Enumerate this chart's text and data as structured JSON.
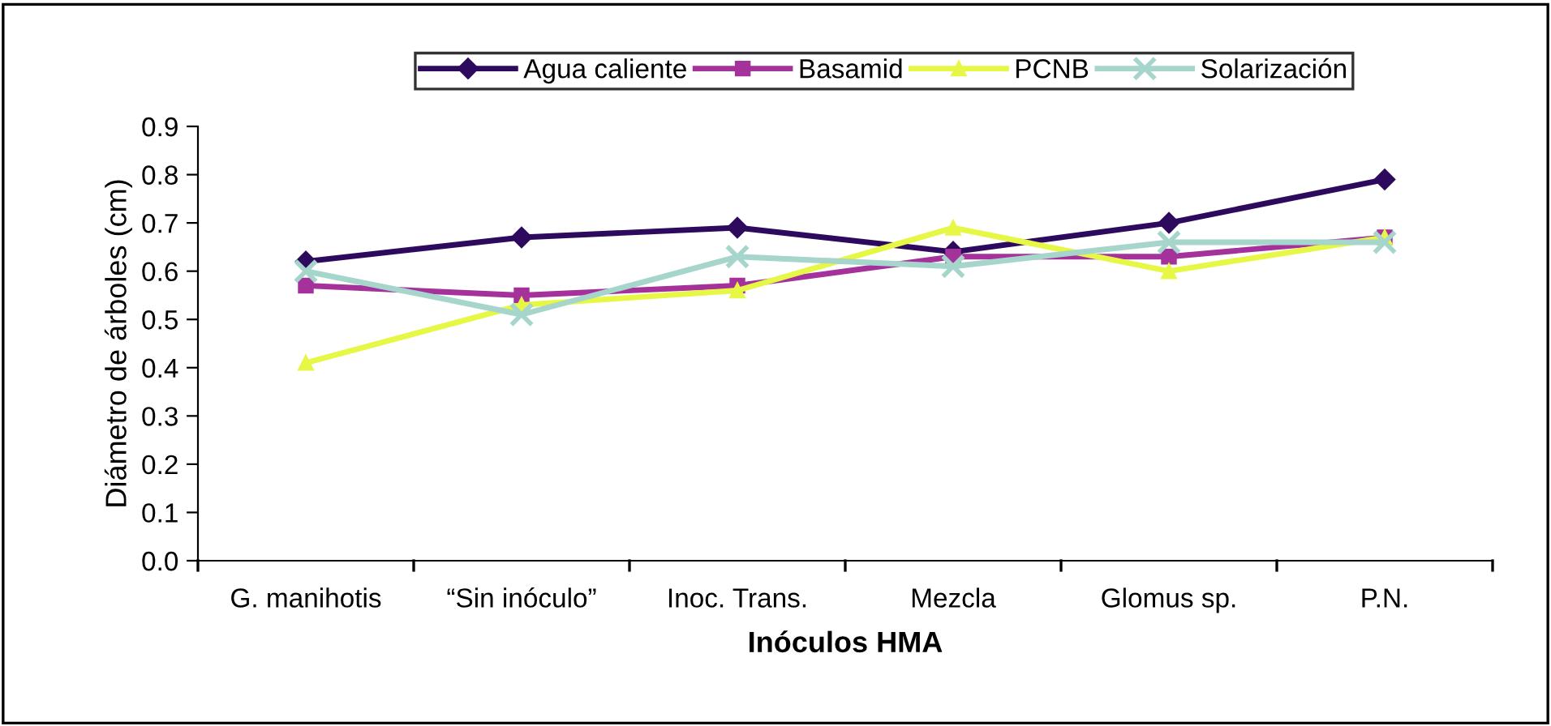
{
  "chart_data": {
    "type": "line",
    "xlabel": "Inóculos HMA",
    "ylabel": "Diámetro de árboles (cm)",
    "categories": [
      "G. manihotis",
      "“Sin inóculo”",
      "Inoc. Trans.",
      "Mezcla",
      "Glomus sp.",
      "P.N."
    ],
    "series": [
      {
        "name": "Agua caliente",
        "color": "#2e0a5e",
        "marker": "diamond",
        "values": [
          0.62,
          0.67,
          0.69,
          0.64,
          0.7,
          0.79
        ]
      },
      {
        "name": "Basamid",
        "color": "#a5319b",
        "marker": "square",
        "values": [
          0.57,
          0.55,
          0.57,
          0.63,
          0.63,
          0.67
        ]
      },
      {
        "name": "PCNB",
        "color": "#e6f745",
        "marker": "triangle",
        "values": [
          0.41,
          0.53,
          0.56,
          0.69,
          0.6,
          0.67
        ]
      },
      {
        "name": "Solarización",
        "color": "#a6d5cc",
        "marker": "cross",
        "values": [
          0.6,
          0.51,
          0.63,
          0.61,
          0.66,
          0.66
        ]
      }
    ],
    "ylim": [
      0,
      0.9
    ],
    "yticks": [
      {
        "value": 0,
        "label": "0.0"
      },
      0.1,
      0.2,
      0.3,
      0.4,
      0.5,
      0.6,
      0.7,
      0.8,
      0.9
    ],
    "grid": false,
    "legend": "top",
    "line_style": "solid"
  }
}
